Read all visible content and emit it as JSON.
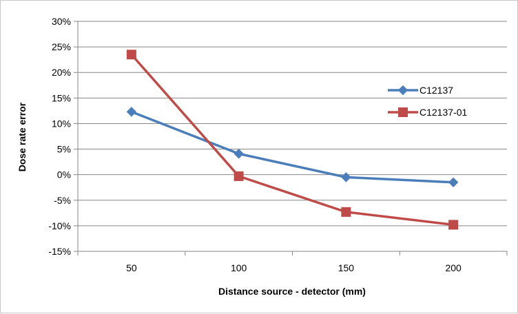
{
  "chart_data": {
    "type": "line",
    "title": "",
    "xlabel": "Distance source - detector (mm)",
    "ylabel": "Dose rate error",
    "categories": [
      "50",
      "100",
      "150",
      "200"
    ],
    "ylim": [
      -15,
      30
    ],
    "yticks": [
      30,
      25,
      20,
      15,
      10,
      5,
      0,
      -5,
      -10,
      -15
    ],
    "ytick_labels": [
      "30%",
      "25%",
      "20%",
      "15%",
      "10%",
      "5%",
      "0%",
      "-5%",
      "-10%",
      "-15%"
    ],
    "grid": "horizontal",
    "legend_position": "right",
    "series": [
      {
        "name": "C12137",
        "values": [
          12.3,
          4.1,
          -0.5,
          -1.5
        ],
        "color": "#4a7ebb",
        "marker": "diamond"
      },
      {
        "name": "C12137-01",
        "values": [
          23.5,
          -0.3,
          -7.3,
          -9.8
        ],
        "color": "#be4b48",
        "marker": "square"
      }
    ]
  }
}
